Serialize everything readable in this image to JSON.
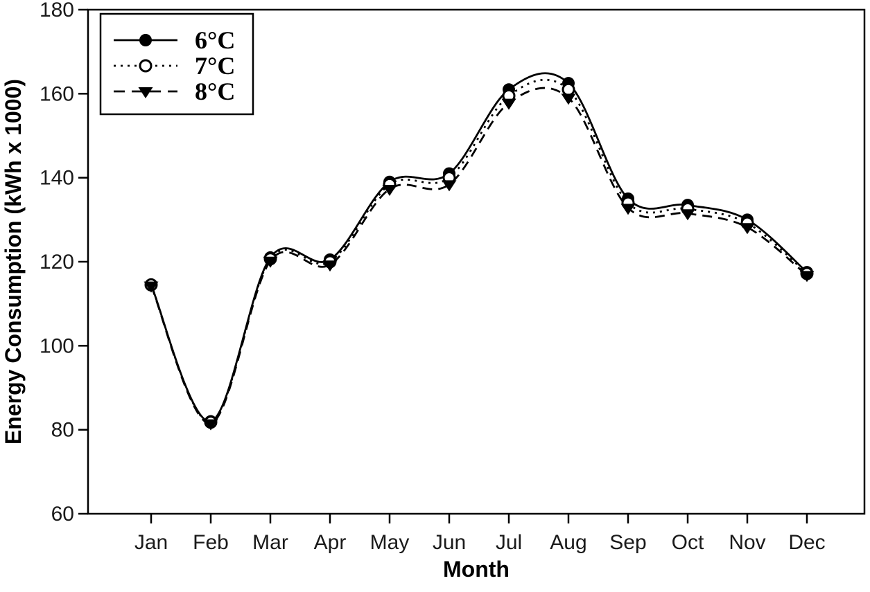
{
  "chart_data": {
    "type": "line",
    "title": "",
    "xlabel": "Month",
    "ylabel": "Energy Consumption (kWh x 1000)",
    "categories": [
      "Jan",
      "Feb",
      "Mar",
      "Apr",
      "May",
      "Jun",
      "Jul",
      "Aug",
      "Sep",
      "Oct",
      "Nov",
      "Dec"
    ],
    "ylim": [
      60,
      180
    ],
    "yticks": [
      60,
      80,
      100,
      120,
      140,
      160,
      180
    ],
    "grid": false,
    "legend_position": "top-left",
    "background_color": "#ffffff",
    "foreground_color": "#000000",
    "series": [
      {
        "name": "6°C",
        "line_style": "solid",
        "marker": "filled-circle",
        "values": [
          114.5,
          82,
          121,
          120.5,
          139,
          141,
          161,
          162.5,
          135,
          133.5,
          130,
          117.5
        ]
      },
      {
        "name": "7°C",
        "line_style": "dotted",
        "marker": "open-circle",
        "values": [
          114.5,
          81.8,
          120.7,
          120,
          138.4,
          140,
          159.5,
          161,
          134,
          132.6,
          129.2,
          117.2
        ]
      },
      {
        "name": "8°C",
        "line_style": "dashed",
        "marker": "filled-triangle-down",
        "values": [
          114.3,
          81.5,
          120.2,
          119.3,
          137.3,
          138.4,
          157.8,
          159,
          132.8,
          131.5,
          128.2,
          116.8
        ]
      }
    ]
  }
}
